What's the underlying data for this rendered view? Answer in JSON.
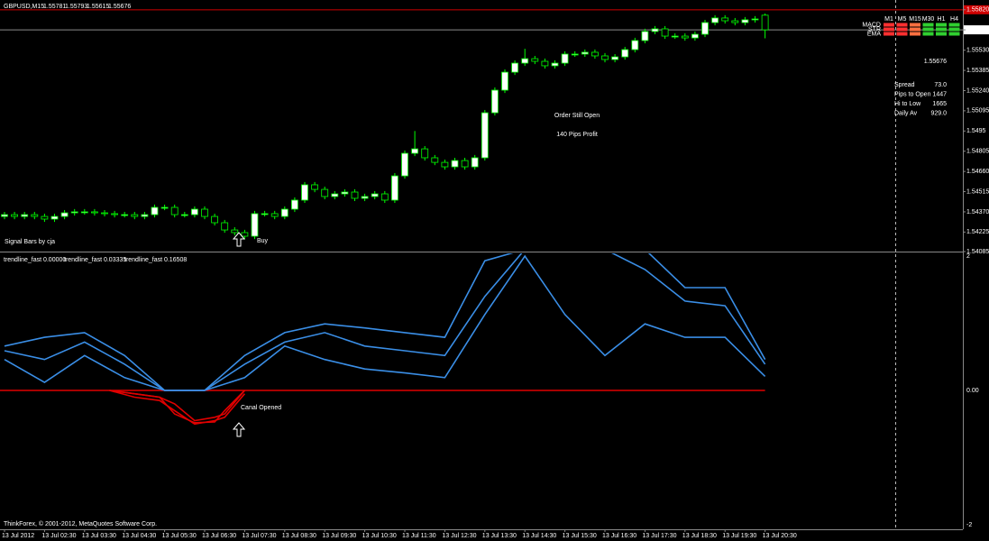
{
  "chart_data": [
    {
      "type": "candlestick",
      "symbol": "GBPUSD,M15",
      "categories": [
        "13 Jul 2012",
        null,
        null,
        null,
        "13 Jul 02:30",
        null,
        null,
        null,
        "13 Jul 03:30",
        null,
        null,
        null,
        "13 Jul 04:30",
        null,
        null,
        null,
        "13 Jul 05:30",
        null,
        null,
        null,
        "13 Jul 06:30",
        null,
        null,
        null,
        "13 Jul 07:30",
        null,
        null,
        null,
        "13 Jul 08:30",
        null,
        null,
        null,
        "13 Jul 09:30",
        null,
        null,
        null,
        "13 Jul 10:30",
        null,
        null,
        null,
        "13 Jul 11:30",
        null,
        null,
        null,
        "13 Jul 12:30",
        null,
        null,
        null,
        "13 Jul 13:30",
        null,
        null,
        null,
        "13 Jul 14:30",
        null,
        null,
        null,
        "13 Jul 15:30",
        null,
        null,
        null,
        "13 Jul 16:30",
        null,
        null,
        null,
        "13 Jul 17:30",
        null,
        null,
        null,
        "13 Jul 18:30",
        null,
        null,
        null,
        "13 Jul 19:30",
        null,
        null,
        null,
        "13 Jul 20:30"
      ],
      "open": [
        1.54337,
        1.5435,
        1.54337,
        1.5435,
        1.54337,
        1.54318,
        1.54337,
        1.54363,
        1.5437,
        1.5437,
        1.54363,
        1.54357,
        1.5435,
        1.5435,
        1.54337,
        1.5435,
        1.54402,
        1.54402,
        1.5435,
        1.5435,
        1.54389,
        1.54337,
        1.54292,
        1.5424,
        1.54221,
        1.54195,
        1.54357,
        1.54357,
        1.54337,
        1.54389,
        1.54454,
        1.54564,
        1.54531,
        1.5448,
        1.54499,
        1.54512,
        1.54467,
        1.5448,
        1.54499,
        1.54454,
        1.54628,
        1.5479,
        1.54822,
        1.54758,
        1.54725,
        1.54693,
        1.54738,
        1.54693,
        1.54758,
        1.55081,
        1.55243,
        1.55372,
        1.55437,
        1.55469,
        1.5545,
        1.55418,
        1.55437,
        1.55502,
        1.55502,
        1.55515,
        1.55489,
        1.55463,
        1.55482,
        1.55534,
        1.55599,
        1.55664,
        1.55683,
        1.55631,
        1.55631,
        1.55618,
        1.55644,
        1.55728,
        1.55761,
        1.55741,
        1.55728,
        1.55748,
        1.55781
      ],
      "high": [
        1.5437,
        1.5437,
        1.5437,
        1.5437,
        1.54357,
        1.54357,
        1.54383,
        1.5439,
        1.5439,
        1.5439,
        1.54383,
        1.54377,
        1.5437,
        1.5437,
        1.5437,
        1.54422,
        1.54422,
        1.54422,
        1.5437,
        1.54409,
        1.54409,
        1.54357,
        1.54312,
        1.5426,
        1.54241,
        1.54377,
        1.54377,
        1.54377,
        1.54409,
        1.54474,
        1.54584,
        1.54584,
        1.54551,
        1.54519,
        1.54532,
        1.54532,
        1.545,
        1.54519,
        1.54519,
        1.54648,
        1.5481,
        1.5495,
        1.54842,
        1.54778,
        1.54745,
        1.54758,
        1.54758,
        1.54778,
        1.55101,
        1.55263,
        1.55392,
        1.55457,
        1.5554,
        1.55489,
        1.5547,
        1.55457,
        1.55522,
        1.55522,
        1.55535,
        1.55535,
        1.55509,
        1.55502,
        1.55554,
        1.55619,
        1.55684,
        1.55703,
        1.55703,
        1.55651,
        1.55651,
        1.55664,
        1.55748,
        1.55781,
        1.55781,
        1.55761,
        1.55768,
        1.55774,
        1.55793
      ],
      "low": [
        1.54317,
        1.54317,
        1.54317,
        1.54317,
        1.54298,
        1.54298,
        1.54317,
        1.54343,
        1.5435,
        1.54343,
        1.54337,
        1.5433,
        1.5433,
        1.54317,
        1.54317,
        1.5433,
        1.54382,
        1.5433,
        1.5433,
        1.5433,
        1.54317,
        1.54272,
        1.5422,
        1.54201,
        1.54175,
        1.54175,
        1.54337,
        1.54317,
        1.54317,
        1.54369,
        1.54434,
        1.54511,
        1.5446,
        1.5446,
        1.54479,
        1.54447,
        1.54447,
        1.5446,
        1.54434,
        1.54434,
        1.54608,
        1.5477,
        1.54738,
        1.54705,
        1.54673,
        1.54673,
        1.54673,
        1.54673,
        1.54738,
        1.55061,
        1.55223,
        1.55352,
        1.55417,
        1.5543,
        1.55398,
        1.55398,
        1.55417,
        1.55482,
        1.55482,
        1.55469,
        1.55443,
        1.55443,
        1.55462,
        1.55514,
        1.55579,
        1.55644,
        1.55611,
        1.55611,
        1.55598,
        1.55598,
        1.55624,
        1.55708,
        1.55721,
        1.55708,
        1.55708,
        1.55728,
        1.55615
      ],
      "close": [
        1.5435,
        1.54337,
        1.5435,
        1.54337,
        1.54318,
        1.54337,
        1.54363,
        1.5437,
        1.5437,
        1.54363,
        1.54357,
        1.5435,
        1.5435,
        1.54337,
        1.5435,
        1.54402,
        1.54402,
        1.5435,
        1.5435,
        1.54389,
        1.54337,
        1.54292,
        1.5424,
        1.54221,
        1.54195,
        1.54357,
        1.54357,
        1.54337,
        1.54389,
        1.54454,
        1.54564,
        1.54531,
        1.5448,
        1.54499,
        1.54512,
        1.54467,
        1.5448,
        1.54499,
        1.54454,
        1.54628,
        1.5479,
        1.54822,
        1.54758,
        1.54725,
        1.54693,
        1.54738,
        1.54693,
        1.54758,
        1.55081,
        1.55243,
        1.55372,
        1.55437,
        1.55469,
        1.5545,
        1.55418,
        1.55437,
        1.55502,
        1.55502,
        1.55515,
        1.55489,
        1.55463,
        1.55482,
        1.55534,
        1.55599,
        1.55664,
        1.55683,
        1.55631,
        1.55631,
        1.55618,
        1.55644,
        1.55728,
        1.55761,
        1.55741,
        1.55728,
        1.55748,
        1.55754,
        1.55676
      ],
      "up_color": "#ffffff",
      "down_color": "#000000",
      "wick_color": "#00ff00",
      "ylim": [
        1.54085,
        1.5589
      ],
      "yticks": [
        {
          "value": 1.5582,
          "label": "1.55820"
        },
        {
          "value": 1.55676,
          "label": "1.55676"
        },
        {
          "value": 1.5553,
          "label": "1.55530"
        },
        {
          "value": 1.55385,
          "label": "1.55385"
        },
        {
          "value": 1.5524,
          "label": "1.55240"
        },
        {
          "value": 1.55095,
          "label": "1.55095"
        },
        1.5495,
        1.54805,
        {
          "value": 1.5466,
          "label": "1.54660"
        },
        1.54515,
        {
          "value": 1.5437,
          "label": "1.54370"
        },
        1.54225,
        1.54085
      ],
      "hlines": [
        {
          "value": 1.5582,
          "color": "#d00000",
          "text_color": "#ffffff"
        },
        {
          "value": 1.55676,
          "color": "#8a8a8a",
          "text_color": "#000000"
        }
      ],
      "annotations": {
        "order": "Order Still Open",
        "profit": "140 Pips Profit",
        "buy": "Buy",
        "credit": "Signal Bars by cja"
      },
      "signal_bars": {
        "columns": [
          "M1",
          "M5",
          "M15",
          "M30",
          "H1",
          "H4"
        ],
        "rows": [
          "MACD",
          "STR",
          "EMA"
        ],
        "colors": [
          [
            "#ff3030",
            "#ff3030",
            "#ff7040",
            "#30d030",
            "#30d030",
            "#30d030"
          ],
          [
            "#ff3030",
            "#ff3030",
            "#ff7040",
            "#30d030",
            "#30d030",
            "#30d030"
          ],
          [
            "#ff3030",
            "#ff3030",
            "#ff7040",
            "#30d030",
            "#30d030",
            "#30d030"
          ]
        ]
      },
      "info": [
        {
          "label": "Spread",
          "value": "73.0",
          "color": "#ff9900"
        },
        {
          "label": "Pips to Open",
          "value": "1447",
          "color": "#33cc33"
        },
        {
          "label": "Hi to Low",
          "value": "1665",
          "color": "#ff9900"
        },
        {
          "label": "Daily Av",
          "value": "929.0",
          "color": "#33cc33"
        }
      ],
      "copyright": "ThinkForex, © 2001-2012, MetaQuotes Software Corp."
    },
    {
      "type": "line",
      "indicator_labels": [
        "trendline_fast 0.00000",
        "trendline_fast 0.03335",
        "trendline_fast 0.16508"
      ],
      "ylim": [
        -2,
        2
      ],
      "yticks": [
        2,
        {
          "value": 0,
          "label": "0.00"
        },
        -2
      ],
      "zero_line_color": "#e00000",
      "annotation": "Canal Opened",
      "series": [
        {
          "color": "#3a8ee6",
          "x": [
            0,
            4,
            8,
            12,
            16,
            20,
            24,
            28,
            32,
            36,
            40,
            44,
            48,
            52,
            56,
            60,
            64,
            68,
            72,
            76
          ],
          "values": [
            0.66,
            0.79,
            0.86,
            0.52,
            0,
            0,
            0.52,
            0.86,
            0.99,
            0.93,
            0.86,
            0.79,
            1.93,
            2.1,
            2.1,
            2.1,
            2.1,
            1.53,
            1.53,
            0.46
          ]
        },
        {
          "color": "#3a8ee6",
          "x": [
            0,
            4,
            8,
            12,
            16,
            20,
            24,
            28,
            32,
            36,
            40,
            44,
            48,
            52,
            56,
            60,
            64,
            68,
            72,
            76
          ],
          "values": [
            0.59,
            0.46,
            0.72,
            0.39,
            0,
            0,
            0.39,
            0.72,
            0.86,
            0.66,
            0.59,
            0.52,
            1.4,
            2.1,
            2.1,
            2.1,
            1.8,
            1.33,
            1.26,
            0.39
          ]
        },
        {
          "color": "#3a8ee6",
          "x": [
            0,
            4,
            8,
            12,
            16,
            20,
            24,
            28,
            32,
            36,
            40,
            44,
            48,
            52,
            56,
            60,
            64,
            68,
            72,
            76
          ],
          "values": [
            0.46,
            0.12,
            0.52,
            0.19,
            0,
            0,
            0.19,
            0.66,
            0.46,
            0.32,
            0.26,
            0.19,
            1.13,
            2.0,
            1.13,
            0.52,
            0.99,
            0.79,
            0.79,
            0.21
          ]
        },
        {
          "color": "#e00000",
          "x": [
            10.5,
            13,
            15.5,
            17,
            19,
            21,
            22,
            24
          ],
          "values": [
            0,
            -0.05,
            -0.1,
            -0.2,
            -0.45,
            -0.4,
            -0.35,
            0
          ]
        },
        {
          "color": "#e00000",
          "x": [
            10.5,
            13,
            15.5,
            17,
            19,
            21,
            22,
            24
          ],
          "values": [
            0,
            -0.1,
            -0.15,
            -0.3,
            -0.5,
            -0.45,
            -0.4,
            -0.05
          ]
        },
        {
          "color": "#e00000",
          "x": [
            10.5,
            13,
            15.5,
            17,
            19,
            21,
            22,
            24
          ],
          "values": [
            0,
            -0.05,
            -0.1,
            -0.35,
            -0.48,
            -0.47,
            -0.3,
            0
          ]
        }
      ]
    }
  ]
}
